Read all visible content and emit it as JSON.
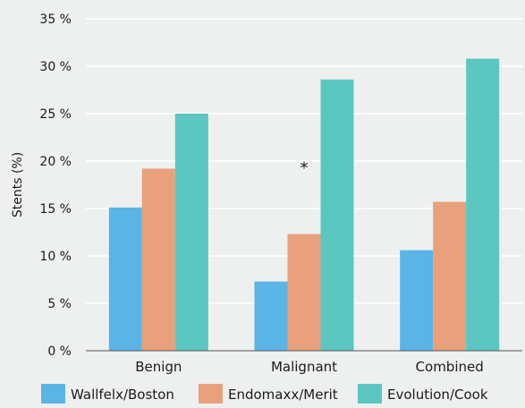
{
  "chart_data": {
    "type": "bar",
    "title": "",
    "xlabel": "",
    "ylabel": "Stents (%)",
    "ylim": [
      0,
      35
    ],
    "yticks": [
      0,
      5,
      10,
      15,
      20,
      25,
      30,
      35
    ],
    "ytick_labels": [
      "0 %",
      "5 %",
      "10 %",
      "15 %",
      "20 %",
      "25 %",
      "30 %",
      "35 %"
    ],
    "categories": [
      "Benign",
      "Malignant",
      "Combined"
    ],
    "series": [
      {
        "name": "Wallfelx/Boston",
        "color": "#5ab4e5",
        "values": [
          15.1,
          7.3,
          10.6
        ]
      },
      {
        "name": "Endomaxx/Merit",
        "color": "#e9a07d",
        "values": [
          19.2,
          12.3,
          15.7
        ]
      },
      {
        "name": "Evolution/Cook",
        "color": "#5cc6c1",
        "values": [
          25.0,
          28.6,
          30.8
        ]
      }
    ],
    "grid": true,
    "legend": "bottom",
    "annotations": [
      {
        "text": "*",
        "category": "Malignant",
        "y": 19.5
      }
    ]
  }
}
